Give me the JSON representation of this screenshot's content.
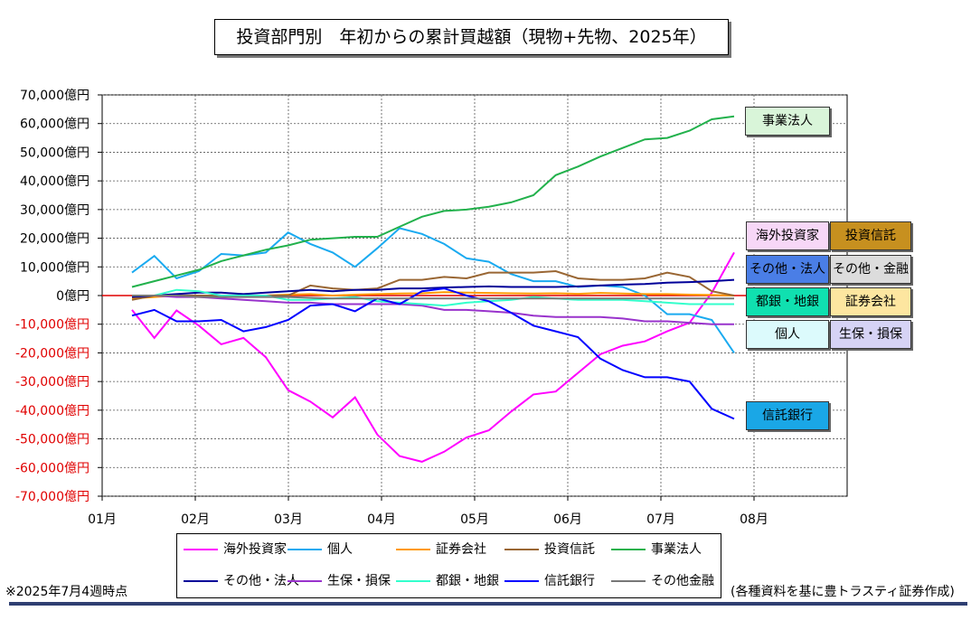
{
  "title": "投資部門別　年初からの累計買越額（現物+先物、2025年）",
  "note_left": "※2025年7月4週時点",
  "note_right": "(各種資料を基に豊トラスティ証券作成)",
  "labels": [
    {
      "text": "事業法人",
      "color": "#d9f5d9",
      "key": "jigyo"
    },
    {
      "text": "海外投資家",
      "color": "#f7d7f7",
      "key": "kaigai"
    },
    {
      "text": "投資信託",
      "color": "#c7901f",
      "key": "toushin"
    },
    {
      "text": "その他・法人",
      "color": "#4a7ee6",
      "key": "sonota_hojin"
    },
    {
      "text": "その他・金融",
      "color": "#dcdcdc",
      "key": "sonota_kinyu"
    },
    {
      "text": "都銀・地銀",
      "color": "#10e0b0",
      "key": "togin"
    },
    {
      "text": "証券会社",
      "color": "#fde6a0",
      "key": "shoken"
    },
    {
      "text": "個人",
      "color": "#dcfafc",
      "key": "kojin"
    },
    {
      "text": "生保・損保",
      "color": "#d6d3f5",
      "key": "seiho"
    },
    {
      "text": "信託銀行",
      "color": "#1aa7e6",
      "key": "shintaku"
    }
  ],
  "chart_data": {
    "type": "line",
    "x_categories": [
      "01月",
      "02月",
      "03月",
      "04月",
      "05月",
      "06月",
      "07月",
      "08月"
    ],
    "ylim": [
      -70000,
      70000
    ],
    "y_ticks": [
      {
        "value": 70000,
        "label": "70,000億円"
      },
      {
        "value": 60000,
        "label": "60,000億円"
      },
      {
        "value": 50000,
        "label": "50,000億円"
      },
      {
        "value": 40000,
        "label": "40,000億円"
      },
      {
        "value": 30000,
        "label": "30,000億円"
      },
      {
        "value": 20000,
        "label": "20,000億円"
      },
      {
        "value": 10000,
        "label": "10,000億円"
      },
      {
        "value": 0,
        "label": "0億円"
      },
      {
        "value": -10000,
        "label": "-10,000億円"
      },
      {
        "value": -20000,
        "label": "-20,000億円"
      },
      {
        "value": -30000,
        "label": "-30,000億円"
      },
      {
        "value": -40000,
        "label": "-40,000億円"
      },
      {
        "value": -50000,
        "label": "-50,000億円"
      },
      {
        "value": -60000,
        "label": "-60,000億円"
      },
      {
        "value": -70000,
        "label": "-70,000億円"
      }
    ],
    "grid": true,
    "x": [
      "1月2週",
      "1月3週",
      "1月4週",
      "1月5週",
      "2月1週",
      "2月2週",
      "2月3週",
      "2月4週",
      "3月1週",
      "3月2週",
      "3月3週",
      "3月4週",
      "4月1週",
      "4月2週",
      "4月3週",
      "4月4週",
      "5月1週",
      "5月2週",
      "5月3週",
      "5月4週",
      "6月1週",
      "6月2週",
      "6月3週",
      "6月4週",
      "7月1週",
      "7月2週",
      "7月3週",
      "7月4週"
    ],
    "series": [
      {
        "name": "海外投資家",
        "color": "#ff00ff",
        "values": [
          -5000,
          -14800,
          -5200,
          -10500,
          -17000,
          -14800,
          -21500,
          -33000,
          -37000,
          -42500,
          -35500,
          -48500,
          -56000,
          -58000,
          -54500,
          -49500,
          -47000,
          -40500,
          -34500,
          -33500,
          -27000,
          -20500,
          -17500,
          -16000,
          -12500,
          -9500,
          1000,
          15000
        ]
      },
      {
        "name": "個人",
        "color": "#1aaaf0",
        "values": [
          8000,
          13800,
          6000,
          8500,
          14500,
          14000,
          15000,
          22000,
          18000,
          15000,
          10000,
          16500,
          23500,
          21500,
          18000,
          13000,
          11800,
          7500,
          5000,
          5000,
          3000,
          3500,
          3000,
          0,
          -6500,
          -6500,
          -8500,
          -20000
        ]
      },
      {
        "name": "証券会社",
        "color": "#ff9900",
        "values": [
          -1000,
          -500,
          0,
          0,
          -300,
          0,
          0,
          300,
          500,
          0,
          300,
          500,
          700,
          800,
          1200,
          1000,
          900,
          800,
          700,
          800,
          600,
          900,
          700,
          500,
          500,
          300,
          200,
          0
        ]
      },
      {
        "name": "投資信託",
        "color": "#996633",
        "values": [
          -1500,
          0,
          0,
          0,
          0,
          0,
          0,
          0,
          3500,
          2500,
          2000,
          2500,
          5500,
          5500,
          6500,
          6000,
          8000,
          8000,
          8000,
          8500,
          6000,
          5500,
          5500,
          6000,
          8000,
          6500,
          1500,
          0
        ]
      },
      {
        "name": "事業法人",
        "color": "#22b14c",
        "values": [
          3000,
          5000,
          7000,
          9000,
          12000,
          14000,
          16000,
          17500,
          19500,
          20000,
          20500,
          20500,
          24000,
          27500,
          29500,
          30000,
          31000,
          32500,
          35000,
          42000,
          45000,
          48500,
          51500,
          54500,
          55000,
          57500,
          61500,
          62500
        ]
      },
      {
        "name": "その他・法人",
        "color": "#000099",
        "values": [
          -500,
          0,
          500,
          1000,
          1000,
          500,
          1000,
          1500,
          2000,
          1500,
          2000,
          2000,
          2500,
          2500,
          2800,
          3000,
          3200,
          3000,
          3000,
          3000,
          3200,
          3500,
          3800,
          4000,
          4500,
          4700,
          5000,
          5500
        ]
      },
      {
        "name": "生保・損保",
        "color": "#9933cc",
        "values": [
          0,
          0,
          -500,
          -500,
          -1000,
          -1500,
          -2000,
          -2500,
          -2500,
          -3000,
          -3000,
          -3000,
          -3000,
          -3500,
          -5000,
          -5000,
          -5500,
          -6000,
          -7000,
          -7500,
          -7500,
          -7500,
          -8000,
          -9000,
          -9000,
          -9500,
          -10000,
          -10000
        ]
      },
      {
        "name": "都銀・地銀",
        "color": "#33ffcc",
        "values": [
          0,
          0,
          2000,
          1500,
          0,
          0,
          0,
          -1500,
          -1500,
          -1000,
          -500,
          -2000,
          -2500,
          -3000,
          -3500,
          -2500,
          -2000,
          -1500,
          -500,
          -1000,
          -1500,
          -1500,
          -1500,
          -2000,
          -2500,
          -3000,
          -3000,
          -3000
        ]
      },
      {
        "name": "信託銀行",
        "color": "#0000ff",
        "values": [
          -7000,
          -5000,
          -9000,
          -9000,
          -8500,
          -12500,
          -11000,
          -8500,
          -3500,
          -3000,
          -5500,
          -1000,
          -3000,
          1500,
          2500,
          0,
          -2000,
          -6000,
          -10500,
          -12500,
          -14500,
          -22000,
          -26000,
          -28500,
          -28500,
          -30000,
          -39500,
          -43000
        ]
      },
      {
        "name": "その他金融",
        "color": "#777777",
        "values": [
          0,
          0,
          0,
          -500,
          -500,
          -500,
          -500,
          -500,
          -800,
          -1000,
          -1000,
          -1000,
          -1000,
          -1000,
          -1000,
          -1000,
          -1000,
          -1000,
          -1000,
          -1000,
          -1000,
          -1000,
          -1000,
          -1000,
          -1000,
          -1000,
          -1000,
          -1000
        ]
      }
    ],
    "legend_placement": "bottom"
  }
}
